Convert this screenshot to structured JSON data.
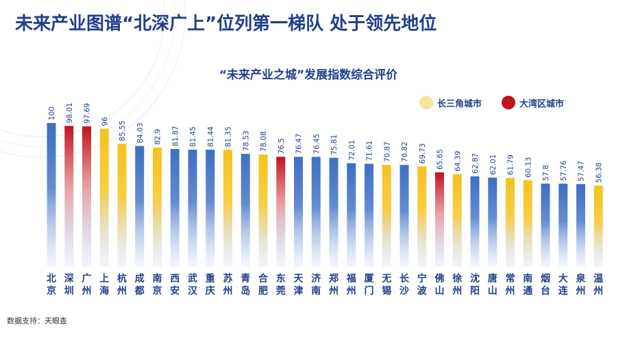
{
  "title": "未来产业图谱“北深广上”位列第一梯队 处于领先地位",
  "source": "数据支持：天眼查",
  "legend": [
    {
      "label": "长三角城市",
      "color": "#f5c21b",
      "dot": "#f7e3a0"
    },
    {
      "label": "大湾区城市",
      "color": "#c0141c",
      "dot": "#c0141c"
    }
  ],
  "chart_data": {
    "type": "bar",
    "title": "“未来产业之城”发展指数综合评价",
    "default_color": "#3d6fc4",
    "ylim": [
      0,
      100
    ],
    "grid": false,
    "legend_position": "top-right",
    "categories": [
      "北京",
      "深圳",
      "广州",
      "上海",
      "杭州",
      "成都",
      "南京",
      "西安",
      "武汉",
      "重庆",
      "苏州",
      "青岛",
      "合肥",
      "东莞",
      "天津",
      "济南",
      "郑州",
      "福州",
      "厦门",
      "无锡",
      "长沙",
      "宁波",
      "佛山",
      "徐州",
      "沈阳",
      "唐山",
      "常州",
      "南通",
      "烟台",
      "大连",
      "泉州",
      "温州"
    ],
    "values": [
      100,
      98.01,
      97.69,
      96,
      85.55,
      84.03,
      82.9,
      81.87,
      81.45,
      81.44,
      81.35,
      78.53,
      78.08,
      76.5,
      76.47,
      76.45,
      75.81,
      72.01,
      71.61,
      70.87,
      70.82,
      69.73,
      65.65,
      64.39,
      62.87,
      62.01,
      61.79,
      60.13,
      57.8,
      57.76,
      57.47,
      56.38
    ],
    "value_labels": [
      "100",
      "98.01",
      "97.69",
      "96",
      "85.55",
      "84.03",
      "82.9",
      "81.87",
      "81.45",
      "81.44",
      "81.35",
      "78.53",
      "78.08",
      "76.5",
      "76.47",
      "76.45",
      "75.81",
      "72.01",
      "71.61",
      "70.87",
      "70.82",
      "69.73",
      "65.65",
      "64.39",
      "62.87",
      "62.01",
      "61.79",
      "60.13",
      "57.8",
      "57.76",
      "57.47",
      "56.38"
    ],
    "groups": [
      "other",
      "大湾区",
      "大湾区",
      "长三角",
      "长三角",
      "other",
      "长三角",
      "other",
      "other",
      "other",
      "长三角",
      "other",
      "长三角",
      "大湾区",
      "other",
      "other",
      "other",
      "other",
      "other",
      "长三角",
      "other",
      "长三角",
      "大湾区",
      "长三角",
      "other",
      "other",
      "长三角",
      "长三角",
      "other",
      "other",
      "other",
      "长三角"
    ]
  }
}
